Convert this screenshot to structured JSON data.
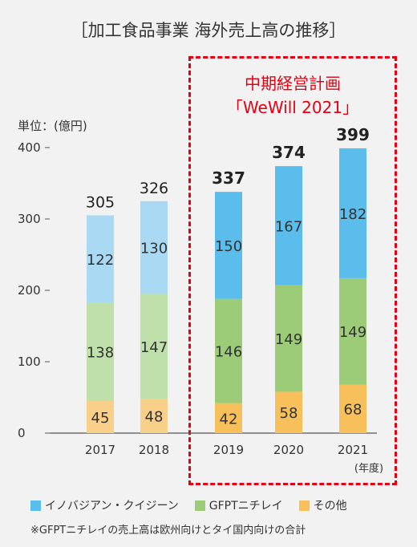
{
  "title": "［加工食品事業 海外売上高の推移］",
  "unit_label": "単位：(億円)",
  "plan": {
    "title": "中期経営計画",
    "subtitle": "「WeWill 2021」"
  },
  "year_unit": "(年度)",
  "legend": [
    {
      "label": "イノバジアン・クイジーン",
      "color": "#5bbdeb"
    },
    {
      "label": "GFPTニチレイ",
      "color": "#9ccc78"
    },
    {
      "label": "その他",
      "color": "#f7c05a"
    }
  ],
  "note": "※GFPTニチレイの売上高は欧州向けとタイ国内向けの合計",
  "chart_data": {
    "type": "bar",
    "stacked": true,
    "categories": [
      "2017",
      "2018",
      "2019",
      "2020",
      "2021"
    ],
    "series": [
      {
        "name": "その他",
        "values": [
          45,
          48,
          42,
          58,
          68
        ]
      },
      {
        "name": "GFPTニチレイ",
        "values": [
          138,
          147,
          146,
          149,
          149
        ]
      },
      {
        "name": "イノバジアン・クイジーン",
        "values": [
          122,
          130,
          150,
          167,
          182
        ]
      }
    ],
    "totals": [
      305,
      326,
      337,
      374,
      399
    ],
    "y_ticks": [
      0,
      100,
      200,
      300,
      400
    ],
    "ylim": [
      0,
      400
    ],
    "colors": {
      "past": [
        "#f9d08a",
        "#bfe0aa",
        "#a9d9f3"
      ],
      "plan": [
        "#f7c05a",
        "#9ccc78",
        "#5bbdeb"
      ]
    },
    "plan_from_index": 2
  }
}
